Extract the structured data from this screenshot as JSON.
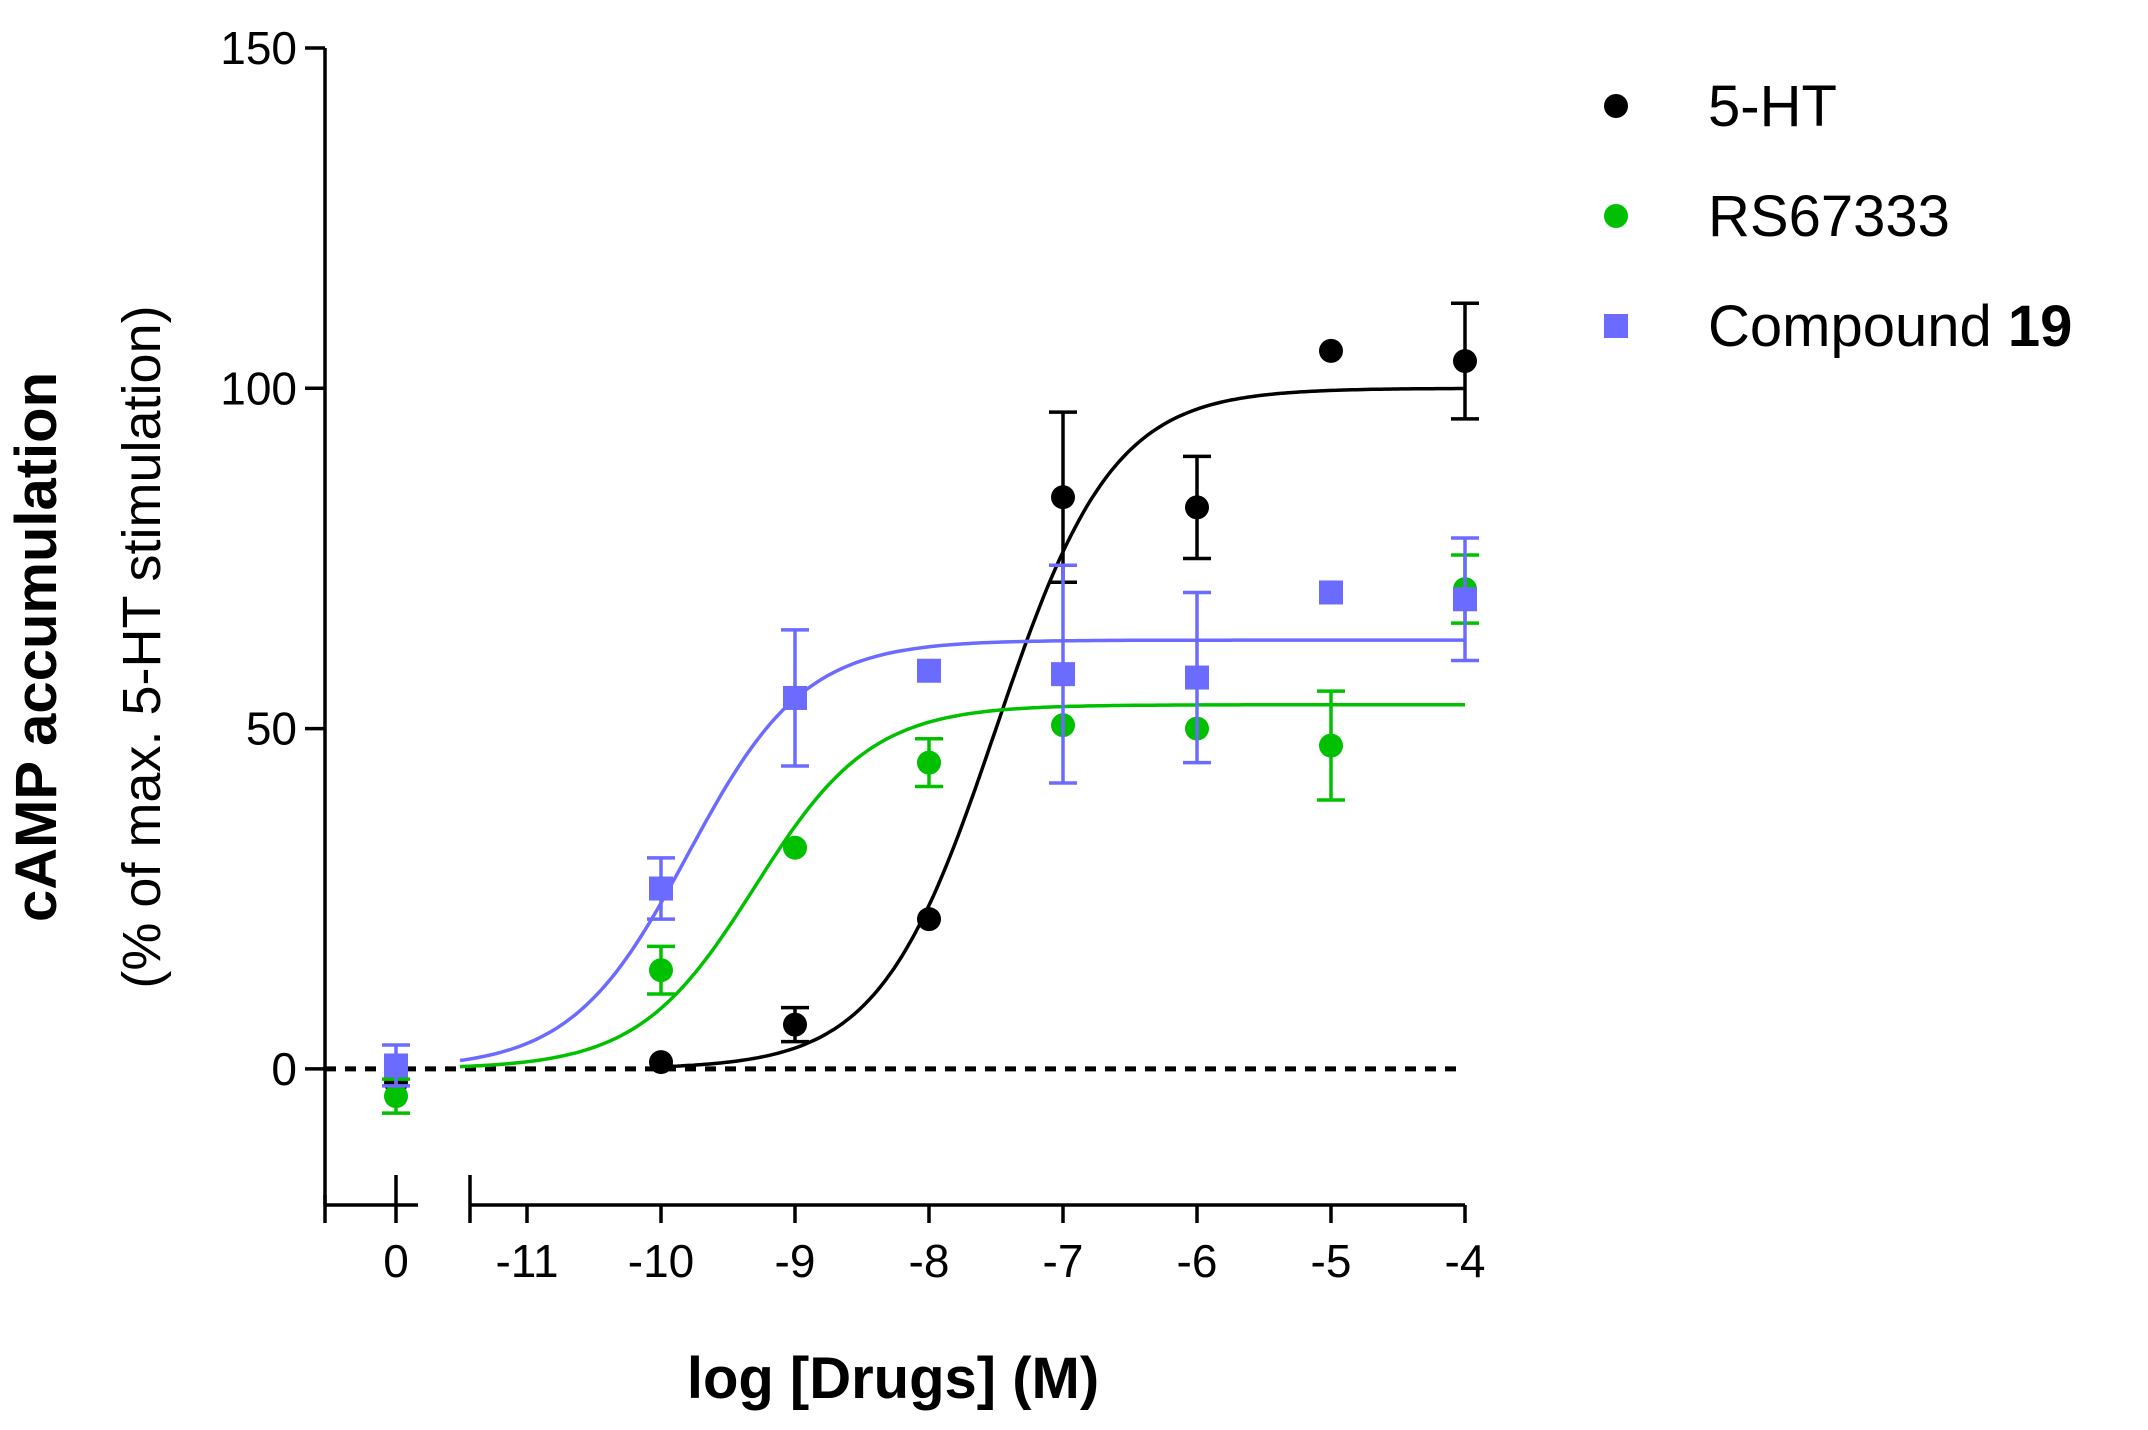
{
  "chart_data": {
    "type": "scatter",
    "title": "",
    "xlabel": "log [Drugs] (M)",
    "ylabel": "cAMP accumulation",
    "ylabel_sub": "(% of max. 5-HT stimulation)",
    "ylim": [
      -20,
      150
    ],
    "yticks": [
      0,
      50,
      100,
      150
    ],
    "ytick_labels": [
      "0",
      "50",
      "100",
      "150"
    ],
    "xlim": [
      -11.5,
      -4
    ],
    "xticks": [
      -11,
      -10,
      -9,
      -8,
      -7,
      -6,
      -5,
      -4
    ],
    "xtick_labels": [
      "-11",
      "-10",
      "-9",
      "-8",
      "-7",
      "-6",
      "-5",
      "-4"
    ],
    "x_break_segment": {
      "tick": 0,
      "tick_label": "0"
    },
    "baseline_dashed_y": 0,
    "legend_position": "top-right",
    "series": [
      {
        "name": "5-HT",
        "name_suffix": "",
        "color": "#000000",
        "marker": "circle",
        "zero_point": {
          "y": -2,
          "err": 0
        },
        "points": [
          {
            "x": -10,
            "y": 1,
            "err": 0
          },
          {
            "x": -9,
            "y": 6.5,
            "err": 2.5
          },
          {
            "x": -8,
            "y": 22,
            "err": 0
          },
          {
            "x": -7,
            "y": 84,
            "err": 12.5
          },
          {
            "x": -6,
            "y": 82.5,
            "err": 7.5
          },
          {
            "x": -5,
            "y": 105.5,
            "err": 0
          },
          {
            "x": -4,
            "y": 104,
            "err": 8.5
          }
        ],
        "fit": {
          "bottom": 0,
          "top": 100,
          "logEC50": -7.5,
          "hill": 1.0,
          "x_start": -10,
          "x_end": -4
        }
      },
      {
        "name": "RS67333",
        "name_suffix": "",
        "color": "#00c000",
        "marker": "circle",
        "zero_point": {
          "y": -4,
          "err": 2.5
        },
        "points": [
          {
            "x": -10,
            "y": 14.5,
            "err": 3.5
          },
          {
            "x": -9,
            "y": 32.5,
            "err": 0
          },
          {
            "x": -8,
            "y": 45,
            "err": 3.5
          },
          {
            "x": -7,
            "y": 50.5,
            "err": 0
          },
          {
            "x": -6,
            "y": 50,
            "err": 0
          },
          {
            "x": -5,
            "y": 47.5,
            "err": 8
          },
          {
            "x": -4,
            "y": 70.5,
            "err": 5
          }
        ],
        "fit": {
          "bottom": 0,
          "top": 53.5,
          "logEC50": -9.3,
          "hill": 1.0,
          "x_start": -11.5,
          "x_end": -4
        }
      },
      {
        "name": "Compound ",
        "name_suffix": "19",
        "color": "#6b6bff",
        "marker": "square",
        "zero_point": {
          "y": 0.5,
          "err": 3
        },
        "points": [
          {
            "x": -10,
            "y": 26.5,
            "err": 4.5
          },
          {
            "x": -9,
            "y": 54.5,
            "err": 10
          },
          {
            "x": -8,
            "y": 58.5,
            "err": 0
          },
          {
            "x": -7,
            "y": 58,
            "err": 16
          },
          {
            "x": -6,
            "y": 57.5,
            "err": 12.5
          },
          {
            "x": -5,
            "y": 70,
            "err": 0
          },
          {
            "x": -4,
            "y": 69,
            "err": 9
          }
        ],
        "fit": {
          "bottom": 0,
          "top": 63,
          "logEC50": -9.8,
          "hill": 1.0,
          "x_start": -11.5,
          "x_end": -4
        }
      }
    ]
  }
}
